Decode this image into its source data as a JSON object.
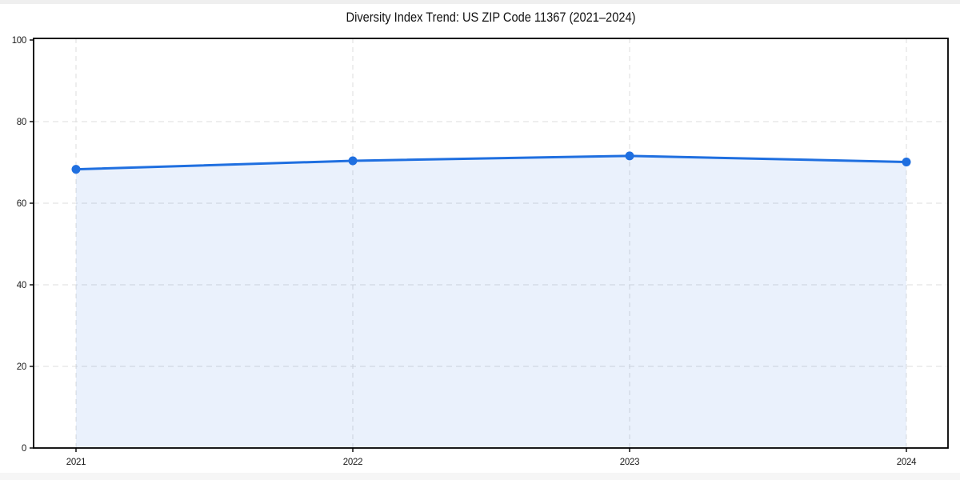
{
  "chart_data": {
    "type": "line",
    "title": "Diversity Index Trend: US ZIP Code 11367 (2021–2024)",
    "x": [
      2021,
      2022,
      2023,
      2024
    ],
    "x_tick_labels": [
      "2021",
      "2022",
      "2023",
      "2024"
    ],
    "series": [
      {
        "name": "Diversity Index",
        "values": [
          68.3,
          70.4,
          71.6,
          70.1
        ]
      }
    ],
    "xlabel": "",
    "ylabel": "",
    "ylim": [
      0,
      100
    ],
    "yticks": [
      0,
      20,
      40,
      60,
      80,
      100
    ],
    "grid": "dashed, both horizontal and vertical at ticks",
    "legend": "none",
    "marker": "circle",
    "colors": {
      "line": "#1f6fe0",
      "marker": "#1f6fe0",
      "area_fill": "rgba(31,111,224,0.095)",
      "grid": "#dcdcdc",
      "spine": "#000000",
      "tick_label": "#1a1a1a",
      "title": "#111111",
      "background": "#ffffff"
    }
  }
}
